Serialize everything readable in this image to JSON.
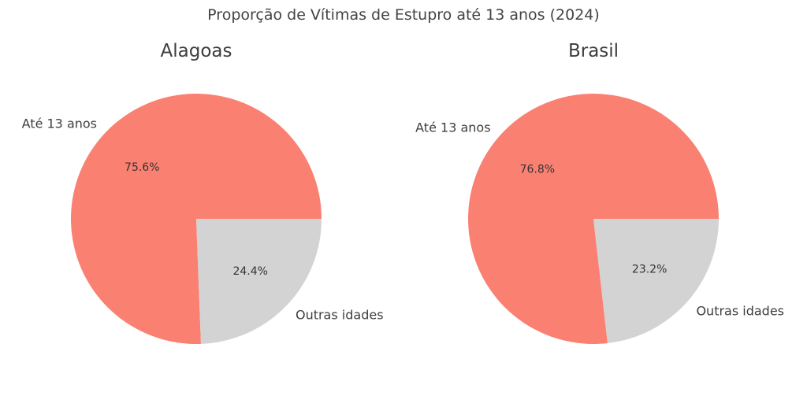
{
  "title": "Proporção de Vítimas de Estupro até 13 anos (2024)",
  "chart_data": [
    {
      "type": "pie",
      "title": "Alagoas",
      "categories": [
        "Até 13 anos",
        "Outras idades"
      ],
      "values": [
        75.6,
        24.4
      ],
      "value_labels": [
        "75.6%",
        "24.4%"
      ],
      "colors": [
        "#fa8072",
        "#d3d3d3"
      ],
      "start_angle_deg": 0,
      "direction": "counterclockwise"
    },
    {
      "type": "pie",
      "title": "Brasil",
      "categories": [
        "Até 13 anos",
        "Outras idades"
      ],
      "values": [
        76.8,
        23.2
      ],
      "value_labels": [
        "76.8%",
        "23.2%"
      ],
      "colors": [
        "#fa8072",
        "#d3d3d3"
      ],
      "start_angle_deg": 0,
      "direction": "counterclockwise"
    }
  ]
}
